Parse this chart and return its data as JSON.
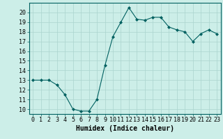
{
  "x": [
    0,
    1,
    2,
    3,
    4,
    5,
    6,
    7,
    8,
    9,
    10,
    11,
    12,
    13,
    14,
    15,
    16,
    17,
    18,
    19,
    20,
    21,
    22,
    23
  ],
  "y": [
    13.0,
    13.0,
    13.0,
    12.5,
    11.5,
    10.0,
    9.8,
    9.8,
    11.0,
    14.5,
    17.5,
    19.0,
    20.5,
    19.3,
    19.2,
    19.5,
    19.5,
    18.5,
    18.2,
    18.0,
    17.0,
    17.8,
    18.2,
    17.8
  ],
  "xlabel": "Humidex (Indice chaleur)",
  "ylim": [
    9.5,
    21.0
  ],
  "xlim": [
    -0.5,
    23.5
  ],
  "yticks": [
    10,
    11,
    12,
    13,
    14,
    15,
    16,
    17,
    18,
    19,
    20
  ],
  "xticks": [
    0,
    1,
    2,
    3,
    4,
    5,
    6,
    7,
    8,
    9,
    10,
    11,
    12,
    13,
    14,
    15,
    16,
    17,
    18,
    19,
    20,
    21,
    22,
    23
  ],
  "line_color": "#006060",
  "marker": "D",
  "marker_size": 2.0,
  "bg_color": "#cceee8",
  "grid_color": "#aad4ce",
  "xlabel_fontsize": 7,
  "tick_fontsize": 6
}
